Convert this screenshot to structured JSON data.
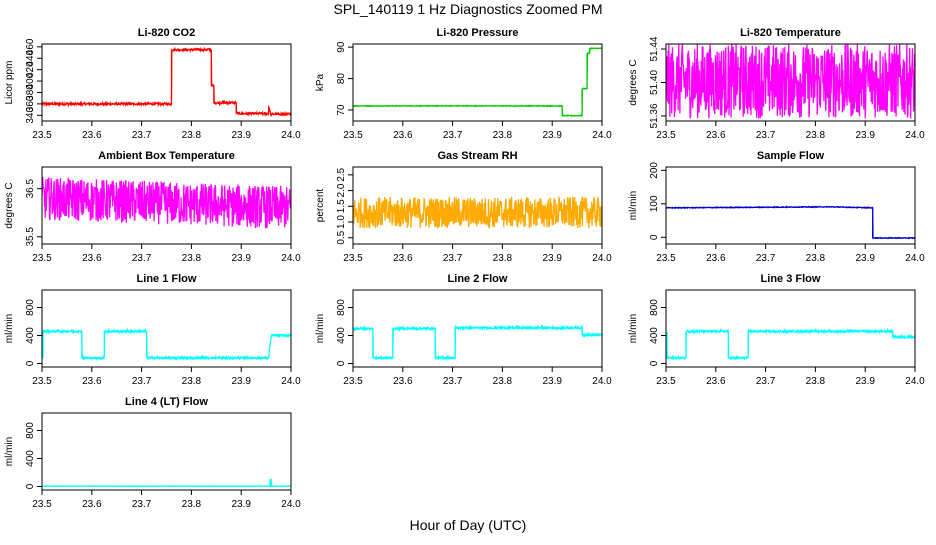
{
  "figure": {
    "title": "SPL_140119  1 Hz Diagnostics Zoomed PM",
    "xlabel": "Hour of Day (UTC)"
  },
  "chart_data": [
    {
      "type": "line",
      "title": "Li-820 CO2",
      "xlabel": "",
      "ylabel": "Licor ppm",
      "color": "#ff0000",
      "xlim": [
        23.5,
        24.0
      ],
      "ylim": [
        330,
        465
      ],
      "xticks": [
        "23.5",
        "23.6",
        "23.7",
        "23.8",
        "23.9",
        "24.0"
      ],
      "yticks": [
        "340",
        "360",
        "380",
        "400",
        "420",
        "440",
        "460"
      ],
      "x": [
        23.5,
        23.76,
        23.76,
        23.84,
        23.84,
        23.845,
        23.845,
        23.89,
        23.89,
        23.955,
        23.955,
        23.96,
        23.96,
        24.0
      ],
      "y": [
        360,
        360,
        455,
        455,
        392,
        392,
        362,
        362,
        343,
        343,
        357,
        340,
        342,
        342
      ],
      "noise": 2
    },
    {
      "type": "line",
      "title": "Li-820 Pressure",
      "xlabel": "",
      "ylabel": "kPa",
      "color": "#00cc00",
      "xlim": [
        23.5,
        24.0
      ],
      "ylim": [
        66.5,
        91
      ],
      "xticks": [
        "23.5",
        "23.6",
        "23.7",
        "23.8",
        "23.9",
        "24.0"
      ],
      "yticks": [
        "70",
        "80",
        "90"
      ],
      "x": [
        23.5,
        23.92,
        23.92,
        23.96,
        23.96,
        23.97,
        23.97,
        23.975,
        23.975,
        24.0
      ],
      "y": [
        71.3,
        71.3,
        68.2,
        68.2,
        76.8,
        76.8,
        88.0,
        88.0,
        89.6,
        89.6
      ],
      "noise": 0.1
    },
    {
      "type": "line",
      "title": "Li-820 Temperature",
      "xlabel": "",
      "ylabel": "degrees C",
      "color": "#ff00ff",
      "xlim": [
        23.5,
        24.0
      ],
      "ylim": [
        51.354,
        51.446
      ],
      "xticks": [
        "23.5",
        "23.6",
        "23.7",
        "23.8",
        "23.9",
        "24.0"
      ],
      "yticks": [
        "51.36",
        "51.40",
        "51.44"
      ],
      "x": [
        23.5,
        24.0
      ],
      "y": [
        51.402,
        51.402
      ],
      "noise": 0.045
    },
    {
      "type": "line",
      "title": "Ambient Box Temperature",
      "xlabel": "",
      "ylabel": "degrees C",
      "color": "#ff00ff",
      "xlim": [
        23.5,
        24.0
      ],
      "ylim": [
        35.35,
        36.95
      ],
      "xticks": [
        "23.5",
        "23.6",
        "23.7",
        "23.8",
        "23.9",
        "24.0"
      ],
      "yticks": [
        "35.5",
        "36.5"
      ],
      "x": [
        23.5,
        24.0
      ],
      "y": [
        36.3,
        36.1
      ],
      "noise": 0.45
    },
    {
      "type": "line",
      "title": "Gas Stream RH",
      "xlabel": "",
      "ylabel": "percent",
      "color": "#ffaa00",
      "xlim": [
        23.5,
        24.0
      ],
      "ylim": [
        0.3,
        2.75
      ],
      "xticks": [
        "23.5",
        "23.6",
        "23.7",
        "23.8",
        "23.9",
        "24.0"
      ],
      "yticks": [
        "0.5",
        "1.0",
        "1.5",
        "2.0",
        "2.5"
      ],
      "x": [
        23.5,
        24.0
      ],
      "y": [
        1.3,
        1.3
      ],
      "noise": 0.5
    },
    {
      "type": "line",
      "title": "Sample Flow",
      "xlabel": "",
      "ylabel": "ml/min",
      "color": "#0000cc",
      "xlim": [
        23.5,
        24.0
      ],
      "ylim": [
        -20,
        210
      ],
      "xticks": [
        "23.5",
        "23.6",
        "23.7",
        "23.8",
        "23.9",
        "24.0"
      ],
      "yticks": [
        "0",
        "100",
        "200"
      ],
      "x": [
        23.5,
        23.83,
        23.915,
        23.915,
        24.0
      ],
      "y": [
        88,
        91,
        88,
        -2,
        -2
      ],
      "noise": 1
    },
    {
      "type": "line",
      "title": "Line 1 Flow",
      "xlabel": "",
      "ylabel": "ml/min",
      "color": "#00ffff",
      "xlim": [
        23.5,
        24.0
      ],
      "ylim": [
        -50,
        1050
      ],
      "xticks": [
        "23.5",
        "23.6",
        "23.7",
        "23.8",
        "23.9",
        "24.0"
      ],
      "yticks": [
        "0",
        "400",
        "800"
      ],
      "x": [
        23.5,
        23.502,
        23.502,
        23.58,
        23.58,
        23.625,
        23.625,
        23.71,
        23.71,
        23.955,
        23.955,
        23.96,
        23.96,
        24.0
      ],
      "y": [
        80,
        80,
        460,
        460,
        80,
        80,
        460,
        460,
        80,
        80,
        80,
        380,
        400,
        400
      ],
      "noise": 15
    },
    {
      "type": "line",
      "title": "Line 2 Flow",
      "xlabel": "",
      "ylabel": "ml/min",
      "color": "#00ffff",
      "xlim": [
        23.5,
        24.0
      ],
      "ylim": [
        -50,
        1050
      ],
      "xticks": [
        "23.5",
        "23.6",
        "23.7",
        "23.8",
        "23.9",
        "24.0"
      ],
      "yticks": [
        "0",
        "400",
        "800"
      ],
      "x": [
        23.5,
        23.54,
        23.54,
        23.58,
        23.58,
        23.665,
        23.665,
        23.705,
        23.705,
        23.96,
        23.96,
        24.0
      ],
      "y": [
        500,
        500,
        80,
        80,
        500,
        500,
        80,
        80,
        510,
        510,
        410,
        410
      ],
      "noise": 15
    },
    {
      "type": "line",
      "title": "Line 3 Flow",
      "xlabel": "",
      "ylabel": "ml/min",
      "color": "#00ffff",
      "xlim": [
        23.5,
        24.0
      ],
      "ylim": [
        -50,
        1050
      ],
      "xticks": [
        "23.5",
        "23.6",
        "23.7",
        "23.8",
        "23.9",
        "24.0"
      ],
      "yticks": [
        "0",
        "400",
        "800"
      ],
      "x": [
        23.5,
        23.502,
        23.502,
        23.54,
        23.54,
        23.625,
        23.625,
        23.665,
        23.665,
        23.955,
        23.955,
        24.0
      ],
      "y": [
        440,
        440,
        80,
        80,
        460,
        460,
        80,
        80,
        460,
        460,
        380,
        380
      ],
      "noise": 15
    },
    {
      "type": "line",
      "title": "Line 4 (LT) Flow",
      "xlabel": "",
      "ylabel": "ml/min",
      "color": "#00ffff",
      "xlim": [
        23.5,
        24.0
      ],
      "ylim": [
        -50,
        1050
      ],
      "xticks": [
        "23.5",
        "23.6",
        "23.7",
        "23.8",
        "23.9",
        "24.0"
      ],
      "yticks": [
        "0",
        "400",
        "800"
      ],
      "x": [
        23.5,
        23.958,
        23.958,
        23.96,
        23.96,
        24.0
      ],
      "y": [
        5,
        5,
        100,
        100,
        5,
        5
      ],
      "noise": 2
    }
  ]
}
